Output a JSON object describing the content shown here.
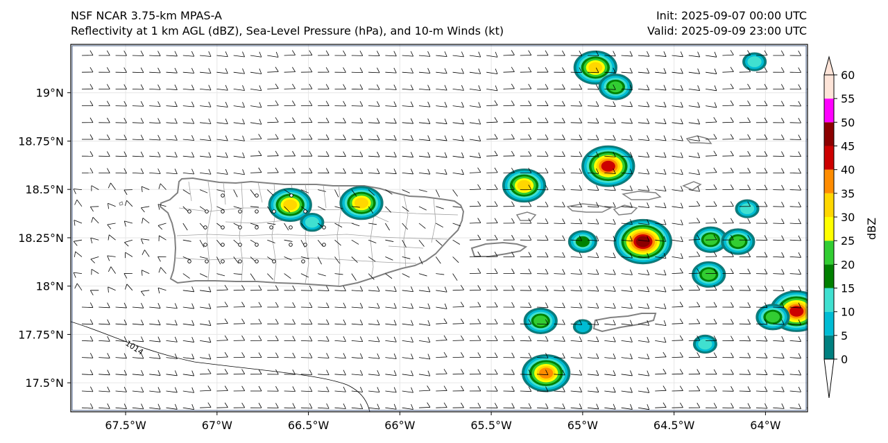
{
  "header": {
    "model": "NSF NCAR 3.75-km MPAS-A",
    "fields": "Reflectivity at 1 km AGL (dBZ), Sea-Level Pressure (hPa), and 10-m Winds (kt)",
    "init": "Init: 2025-09-07 00:00 UTC",
    "valid": "Valid: 2025-09-09 23:00 UTC"
  },
  "map": {
    "lon_range": [
      -67.8,
      -63.77
    ],
    "lat_range": [
      17.35,
      19.25
    ],
    "lon_ticks": [
      {
        "value": -67.5,
        "label": "67.5°W"
      },
      {
        "value": -67.0,
        "label": "67°W"
      },
      {
        "value": -66.5,
        "label": "66.5°W"
      },
      {
        "value": -66.0,
        "label": "66°W"
      },
      {
        "value": -65.5,
        "label": "65.5°W"
      },
      {
        "value": -65.0,
        "label": "65°W"
      },
      {
        "value": -64.5,
        "label": "64.5°W"
      },
      {
        "value": -64.0,
        "label": "64°W"
      }
    ],
    "lat_ticks": [
      {
        "value": 19.0,
        "label": "19°N"
      },
      {
        "value": 18.75,
        "label": "18.75°N"
      },
      {
        "value": 18.5,
        "label": "18.5°N"
      },
      {
        "value": 18.25,
        "label": "18.25°N"
      },
      {
        "value": 18.0,
        "label": "18°N"
      },
      {
        "value": 17.75,
        "label": "17.75°N"
      },
      {
        "value": 17.5,
        "label": "17.5°N"
      }
    ],
    "isobar_label": "1014",
    "colorbar": {
      "label": "dBZ",
      "levels": [
        0,
        5,
        10,
        15,
        20,
        25,
        30,
        35,
        40,
        45,
        50,
        55,
        60
      ],
      "colors": [
        "#008080",
        "#00bcd4",
        "#40e0d0",
        "#008000",
        "#32cd32",
        "#ffff00",
        "#ffd700",
        "#ff8c00",
        "#cc0000",
        "#8b0000",
        "#ff00ff",
        "#fde4d8"
      ]
    },
    "cells": [
      {
        "lon": -64.93,
        "lat": 19.13,
        "max": 30
      },
      {
        "lon": -64.82,
        "lat": 19.03,
        "max": 20
      },
      {
        "lon": -64.86,
        "lat": 18.62,
        "max": 40
      },
      {
        "lon": -65.32,
        "lat": 18.52,
        "max": 30
      },
      {
        "lon": -66.6,
        "lat": 18.42,
        "max": 30
      },
      {
        "lon": -66.21,
        "lat": 18.43,
        "max": 30
      },
      {
        "lon": -66.48,
        "lat": 18.33,
        "max": 10
      },
      {
        "lon": -64.67,
        "lat": 18.23,
        "max": 45
      },
      {
        "lon": -65.0,
        "lat": 18.23,
        "max": 15
      },
      {
        "lon": -64.3,
        "lat": 18.24,
        "max": 20
      },
      {
        "lon": -64.15,
        "lat": 18.23,
        "max": 20
      },
      {
        "lon": -64.31,
        "lat": 18.06,
        "max": 20
      },
      {
        "lon": -63.83,
        "lat": 17.87,
        "max": 40
      },
      {
        "lon": -63.96,
        "lat": 17.84,
        "max": 20
      },
      {
        "lon": -65.23,
        "lat": 17.82,
        "max": 20
      },
      {
        "lon": -65.2,
        "lat": 17.55,
        "max": 35
      },
      {
        "lon": -65.0,
        "lat": 17.79,
        "max": 5
      },
      {
        "lon": -64.33,
        "lat": 17.7,
        "max": 10
      },
      {
        "lon": -64.1,
        "lat": 18.4,
        "max": 10
      },
      {
        "lon": -64.06,
        "lat": 19.16,
        "max": 10
      }
    ]
  }
}
